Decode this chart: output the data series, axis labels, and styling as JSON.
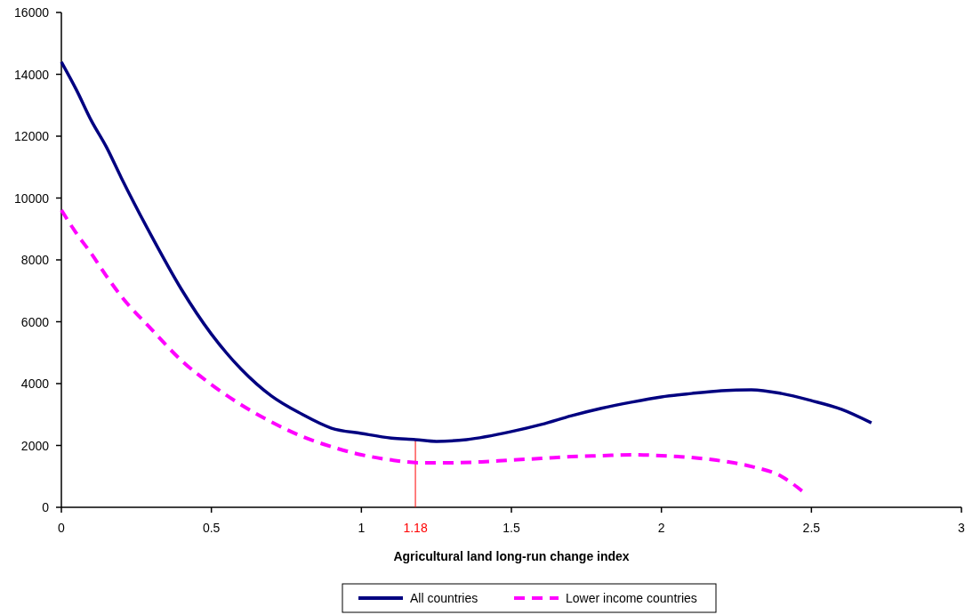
{
  "chart_data": {
    "type": "line",
    "xlabel": "Agricultural land long-run change index",
    "xlim": [
      0,
      3
    ],
    "xticks": [
      0,
      0.5,
      1,
      1.5,
      2,
      2.5,
      3
    ],
    "ylim": [
      0,
      16000
    ],
    "yticks": [
      0,
      2000,
      4000,
      6000,
      8000,
      10000,
      12000,
      14000,
      16000
    ],
    "grid": false,
    "legend": "bottom",
    "marker": "none",
    "ref_lines": [
      {
        "axis": "x",
        "value": 1.18,
        "label": "1.18",
        "color": "#ff0000"
      }
    ],
    "series": [
      {
        "name": "All countries",
        "color": "#000080",
        "line_style": "solid",
        "x": [
          0,
          0.05,
          0.1,
          0.15,
          0.2,
          0.3,
          0.4,
          0.5,
          0.6,
          0.7,
          0.8,
          0.9,
          1.0,
          1.1,
          1.18,
          1.25,
          1.35,
          1.5,
          1.6,
          1.7,
          1.8,
          1.9,
          2.0,
          2.1,
          2.2,
          2.3,
          2.4,
          2.5,
          2.6,
          2.7
        ],
        "values": [
          14400,
          13500,
          12500,
          11650,
          10650,
          8780,
          7050,
          5600,
          4460,
          3600,
          3020,
          2560,
          2390,
          2240,
          2190,
          2130,
          2190,
          2450,
          2680,
          2960,
          3200,
          3400,
          3570,
          3680,
          3770,
          3800,
          3680,
          3450,
          3170,
          2730
        ]
      },
      {
        "name": "Lower income countries",
        "color": "#ff00ff",
        "line_style": "dashed",
        "x": [
          0,
          0.05,
          0.1,
          0.15,
          0.2,
          0.3,
          0.4,
          0.5,
          0.6,
          0.7,
          0.8,
          0.9,
          1.0,
          1.1,
          1.2,
          1.3,
          1.4,
          1.5,
          1.6,
          1.7,
          1.8,
          1.9,
          2.0,
          2.1,
          2.2,
          2.3,
          2.4,
          2.47
        ],
        "values": [
          9610,
          8860,
          8200,
          7480,
          6820,
          5760,
          4750,
          3970,
          3310,
          2760,
          2300,
          1960,
          1700,
          1530,
          1440,
          1440,
          1470,
          1530,
          1580,
          1640,
          1670,
          1700,
          1670,
          1610,
          1500,
          1320,
          1000,
          520
        ]
      }
    ]
  }
}
